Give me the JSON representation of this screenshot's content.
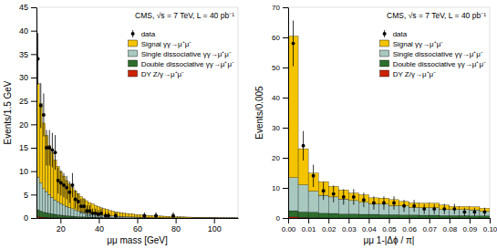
{
  "chart_data": [
    {
      "type": "bar",
      "stacked": true,
      "legend": "upper right",
      "annotation": "CMS, √s = 7 TeV, L = 40 pb⁻¹",
      "xlabel": "μμ mass [GeV]",
      "ylabel": "Events/1.5 GeV",
      "xlim": [
        7.5,
        112.5
      ],
      "ylim": [
        0,
        45
      ],
      "xticks": [
        20,
        40,
        60,
        80,
        100
      ],
      "yticks": [
        0,
        5,
        10,
        15,
        20,
        25,
        30,
        35,
        40,
        45
      ],
      "bins": [
        7.5,
        9.0,
        10.5,
        12.0,
        13.5,
        15.0,
        16.5,
        18.0,
        19.5,
        21.0,
        22.5,
        24.0,
        25.5,
        27.0,
        28.5,
        30.0,
        31.5,
        33.0,
        34.5,
        36.0,
        37.5,
        39.0,
        40.5,
        42.0,
        43.5,
        45.0,
        46.5,
        48.0,
        49.5,
        51.0,
        52.5,
        54.0,
        55.5,
        57.0,
        58.5,
        60.0,
        61.5,
        63.0,
        64.5,
        66.0,
        67.5,
        69.0,
        70.5,
        72.0,
        73.5,
        75.0,
        76.5,
        78.0,
        79.5,
        81.0,
        82.5,
        84.0,
        85.5,
        87.0,
        88.5,
        90.0,
        91.5,
        93.0,
        94.5,
        96.0,
        97.5,
        99.0,
        100.5,
        102.0,
        103.5,
        105.0,
        106.5,
        108.0,
        109.5,
        111.0,
        112.5
      ],
      "series": [
        {
          "name": "data",
          "type": "scatter",
          "marker": "circle",
          "color": "#000000",
          "x": [
            8.25,
            9.75,
            11.25,
            12.75,
            14.25,
            15.75,
            17.25,
            18.75,
            20.25,
            21.75,
            23.25,
            24.75,
            26.25,
            27.75,
            29.25,
            30.75,
            32.25,
            33.75,
            35.25,
            36.75,
            38.25,
            39.75,
            41.25,
            43.5,
            45.0,
            48.75,
            63.75,
            69.75,
            78.75
          ],
          "values": [
            34.0,
            24.0,
            22.0,
            15.0,
            15.0,
            14.5,
            14.0,
            8.0,
            7.5,
            7.0,
            6.5,
            5.5,
            7.0,
            4.0,
            3.5,
            2.5,
            2.5,
            1.5,
            1.5,
            1.0,
            1.0,
            0.8,
            1.0,
            0.5,
            0.5,
            0.5,
            0.5,
            0.5,
            0.5
          ],
          "error_low": [
            5.5,
            4.8,
            4.6,
            3.8,
            3.8,
            3.7,
            3.7,
            2.8,
            2.7,
            2.6,
            2.5,
            2.3,
            2.6,
            2.0,
            1.8,
            1.6,
            1.6,
            1.2,
            1.2,
            1.0,
            1.0,
            0.9,
            1.0,
            0.7,
            0.7,
            0.7,
            0.7,
            0.7,
            0.7
          ],
          "error_high": [
            5.5,
            4.8,
            4.6,
            3.8,
            3.8,
            3.7,
            3.7,
            2.8,
            2.7,
            2.6,
            2.5,
            2.3,
            2.6,
            2.0,
            1.8,
            1.6,
            1.6,
            1.2,
            1.2,
            1.0,
            1.0,
            0.9,
            1.0,
            0.7,
            0.7,
            0.7,
            0.7,
            0.7,
            0.7
          ]
        },
        {
          "name": "Signal γγ→μ⁺μ⁻",
          "type": "bar",
          "color": "#F5C400",
          "values": [
            20.0,
            17.0,
            14.0,
            12.0,
            10.5,
            9.5,
            8.5,
            7.5,
            6.8,
            6.2,
            5.5,
            5.0,
            4.5,
            4.0,
            3.6,
            3.2,
            2.9,
            2.6,
            2.3,
            2.1,
            1.9,
            1.7,
            1.5,
            1.4,
            1.3,
            1.1,
            1.0,
            0.9,
            0.85,
            0.8,
            0.75,
            0.7,
            0.65,
            0.6,
            0.55,
            0.5,
            0.48,
            0.45,
            0.42,
            0.4,
            0.38,
            0.36,
            0.34,
            0.32,
            0.3,
            0.28,
            0.26,
            0.24,
            0.22,
            0.2,
            0.19,
            0.18,
            0.17,
            0.16,
            0.15,
            0.14,
            0.13,
            0.12,
            0.11,
            0.1,
            0.09,
            0.08,
            0.07,
            0.06,
            0.06,
            0.05,
            0.05,
            0.04,
            0.04,
            0.03
          ]
        },
        {
          "name": "Single dissociative γγ→μ⁺μ⁻",
          "type": "bar",
          "color": "#A8C8C0",
          "values": [
            7.0,
            6.0,
            5.0,
            4.5,
            4.0,
            3.5,
            3.1,
            2.8,
            2.5,
            2.2,
            2.0,
            1.8,
            1.6,
            1.4,
            1.25,
            1.1,
            1.0,
            0.9,
            0.82,
            0.75,
            0.68,
            0.62,
            0.56,
            0.5,
            0.46,
            0.42,
            0.38,
            0.34,
            0.31,
            0.28,
            0.26,
            0.24,
            0.22,
            0.2,
            0.18,
            0.17,
            0.16,
            0.15,
            0.14,
            0.13,
            0.12,
            0.11,
            0.1,
            0.09,
            0.08,
            0.07,
            0.06,
            0.06,
            0.05,
            0.05,
            0.04,
            0.04,
            0.03,
            0.03,
            0.02,
            0.02,
            0.02,
            0.01,
            0.01,
            0.01,
            0.01,
            0.01,
            0.01,
            0.0,
            0.0,
            0.0,
            0.0,
            0.0,
            0.0,
            0.0
          ]
        },
        {
          "name": "Double dissociative γγ→μ⁺μ⁻",
          "type": "bar",
          "color": "#2D6E2D",
          "values": [
            1.5,
            1.3,
            1.1,
            1.0,
            0.9,
            0.8,
            0.7,
            0.62,
            0.55,
            0.5,
            0.45,
            0.4,
            0.36,
            0.32,
            0.28,
            0.25,
            0.22,
            0.2,
            0.18,
            0.16,
            0.14,
            0.13,
            0.12,
            0.1,
            0.09,
            0.08,
            0.07,
            0.06,
            0.05,
            0.04,
            0.04,
            0.03,
            0.03,
            0.02,
            0.02,
            0.02,
            0.01,
            0.01,
            0.01,
            0.0,
            0.0,
            0.0,
            0.0,
            0.0,
            0.0,
            0.0,
            0.0,
            0.0,
            0.0,
            0.0,
            0.0,
            0.0,
            0.0,
            0.0,
            0.0,
            0.0,
            0.0,
            0.0,
            0.0,
            0.0,
            0.0,
            0.0,
            0.0,
            0.0,
            0.0,
            0.0,
            0.0,
            0.0,
            0.0,
            0.0
          ]
        },
        {
          "name": "DY Z/γ→μ⁺μ⁻",
          "type": "bar",
          "color": "#CC2200",
          "values": [
            0.25,
            0.2,
            0.17,
            0.14,
            0.12,
            0.1,
            0.08,
            0.07,
            0.06,
            0.05,
            0.04,
            0.03,
            0.02,
            0.02,
            0.01,
            0.01,
            0.0,
            0.0,
            0.0,
            0.0,
            0.0,
            0.0,
            0.0,
            0.0,
            0.0,
            0.0,
            0.0,
            0.0,
            0.0,
            0.0,
            0.0,
            0.0,
            0.0,
            0.0,
            0.0,
            0.0,
            0.0,
            0.0,
            0.0,
            0.0,
            0.0,
            0.0,
            0.0,
            0.0,
            0.0,
            0.0,
            0.0,
            0.0,
            0.0,
            0.0,
            0.0,
            0.0,
            0.0,
            0.0,
            0.0,
            0.0,
            0.0,
            0.0,
            0.0,
            0.0,
            0.0,
            0.0,
            0.0,
            0.0,
            0.0,
            0.0,
            0.0,
            0.0,
            0.0,
            0.0
          ]
        }
      ]
    },
    {
      "type": "bar",
      "stacked": true,
      "legend": "upper right",
      "annotation": "CMS, √s = 7 TeV, L = 40 pb⁻¹",
      "xlabel": "μμ 1-|Δϕ / π|",
      "ylabel": "Events/0.005",
      "xlim": [
        0,
        0.1
      ],
      "ylim": [
        0,
        70
      ],
      "xticks": [
        {
          "value": 0,
          "label": "0.00"
        },
        0.01,
        0.02,
        0.03,
        0.04,
        0.05,
        0.06,
        0.07,
        0.08,
        0.09,
        {
          "value": 0.1,
          "label": "0.10"
        }
      ],
      "yticks": [
        0,
        10,
        20,
        30,
        40,
        50,
        60,
        70
      ],
      "bins": [
        0.0,
        0.005,
        0.01,
        0.015,
        0.02,
        0.025,
        0.03,
        0.035,
        0.04,
        0.045,
        0.05,
        0.055,
        0.06,
        0.065,
        0.07,
        0.075,
        0.08,
        0.085,
        0.09,
        0.095,
        0.1
      ],
      "series": [
        {
          "name": "data",
          "type": "scatter",
          "marker": "circle",
          "color": "#000000",
          "x": [
            0.0025,
            0.0075,
            0.0125,
            0.0175,
            0.0225,
            0.0275,
            0.0325,
            0.0375,
            0.0425,
            0.0475,
            0.0525,
            0.0575,
            0.0625,
            0.0675,
            0.0725,
            0.0775,
            0.0825,
            0.0875,
            0.0925,
            0.0975
          ],
          "values": [
            58.0,
            24.0,
            14.0,
            9.0,
            8.0,
            7.0,
            7.0,
            6.0,
            5.0,
            5.0,
            5.0,
            4.0,
            4.0,
            3.0,
            3.0,
            3.0,
            3.0,
            2.0,
            2.0,
            2.0
          ],
          "error_low": [
            7.6,
            4.9,
            3.7,
            3.0,
            2.8,
            2.6,
            2.6,
            2.4,
            2.2,
            2.2,
            2.2,
            2.0,
            2.0,
            1.7,
            1.7,
            1.7,
            1.7,
            1.4,
            1.4,
            1.4
          ],
          "error_high": [
            7.6,
            4.9,
            3.7,
            3.0,
            2.8,
            2.6,
            2.6,
            2.4,
            2.2,
            2.2,
            2.2,
            2.0,
            2.0,
            1.7,
            1.7,
            1.7,
            1.7,
            1.4,
            1.4,
            1.4
          ]
        },
        {
          "name": "Signal γγ→μ⁺μ⁻",
          "type": "bar",
          "color": "#F5C400",
          "values": [
            47.0,
            12.0,
            6.0,
            4.5,
            3.5,
            3.0,
            2.5,
            2.5,
            2.0,
            2.0,
            2.0,
            1.5,
            1.5,
            1.5,
            1.5,
            1.5,
            1.0,
            1.0,
            1.0,
            1.0
          ]
        },
        {
          "name": "Single dissociative γγ→μ⁺μ⁻",
          "type": "bar",
          "color": "#A8C8C0",
          "values": [
            11.0,
            9.0,
            7.0,
            6.0,
            5.5,
            5.0,
            4.5,
            4.0,
            3.5,
            3.5,
            3.0,
            3.0,
            2.5,
            2.5,
            2.5,
            2.0,
            2.0,
            2.0,
            2.0,
            1.5
          ]
        },
        {
          "name": "Double dissociative γγ→μ⁺μ⁻",
          "type": "bar",
          "color": "#2D6E2D",
          "values": [
            2.0,
            1.8,
            1.8,
            1.5,
            1.5,
            1.3,
            1.3,
            1.2,
            1.2,
            1.1,
            1.1,
            1.0,
            1.0,
            0.9,
            0.9,
            0.8,
            0.8,
            0.8,
            0.7,
            0.7
          ]
        },
        {
          "name": "DY Z/γ→μ⁺μ⁻",
          "type": "bar",
          "color": "#CC2200",
          "values": [
            0.4,
            0.2,
            0.1,
            0.05,
            0.0,
            0.0,
            0.0,
            0.0,
            0.0,
            0.0,
            0.0,
            0.0,
            0.0,
            0.0,
            0.0,
            0.0,
            0.0,
            0.0,
            0.0,
            0.0
          ]
        }
      ]
    }
  ]
}
